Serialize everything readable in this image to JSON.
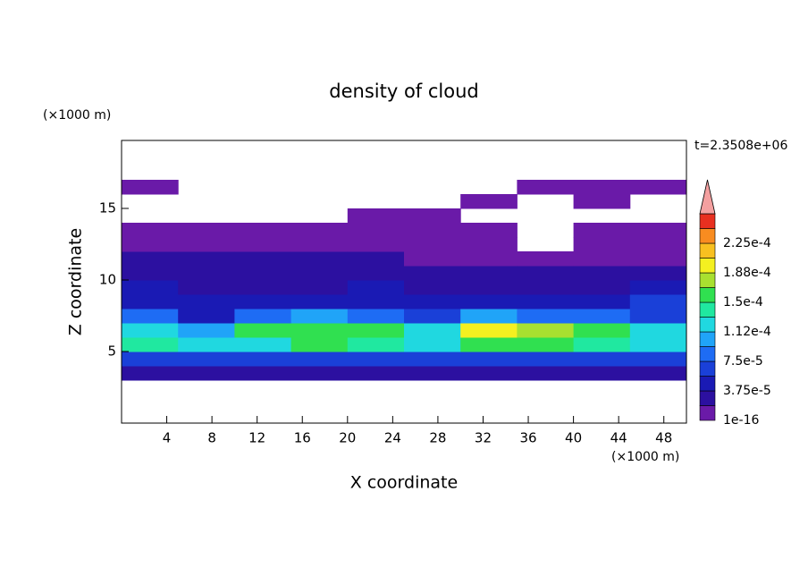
{
  "chart_data": {
    "type": "contour",
    "title": "density of cloud",
    "x_label": "X coordinate",
    "y_label": "Z coordinate",
    "x_unit": "(×1000 m)",
    "y_unit": "(×1000 m)",
    "annotation": "t=2.3508e+06",
    "xlim": [
      0,
      50
    ],
    "ylim": [
      0,
      19.75
    ],
    "xticks": [
      4,
      8,
      12,
      16,
      20,
      24,
      28,
      32,
      36,
      40,
      44,
      48
    ],
    "yticks": [
      5,
      10,
      15
    ],
    "x": [
      2.5,
      7.5,
      12.5,
      17.5,
      22.5,
      27.5,
      32.5,
      37.5,
      42.5,
      47.5
    ],
    "z": [
      3.5,
      4.5,
      5.5,
      6.5,
      7.5,
      8.5,
      9.5,
      10.5,
      11.5,
      12.5,
      13.5,
      14.5,
      15.5,
      16.5
    ],
    "values": [
      [
        3e-05,
        3e-05,
        3e-05,
        3e-05,
        3e-05,
        3e-05,
        3e-05,
        3e-05,
        3e-05,
        3e-05
      ],
      [
        7e-05,
        7e-05,
        7e-05,
        7e-05,
        7e-05,
        7e-05,
        7e-05,
        7e-05,
        7e-05,
        7e-05
      ],
      [
        0.00014,
        0.00012,
        0.00013,
        0.00015,
        0.00014,
        0.00013,
        0.00016,
        0.00015,
        0.00014,
        0.00013
      ],
      [
        0.00013,
        0.00011,
        0.00015,
        0.00016,
        0.00015,
        0.00013,
        0.0002,
        0.00017,
        0.00015,
        0.00012
      ],
      [
        8e-05,
        5e-05,
        9e-05,
        0.0001,
        9e-05,
        6e-05,
        0.0001,
        9e-05,
        8e-05,
        7e-05
      ],
      [
        5e-05,
        4e-05,
        5e-05,
        5e-05,
        5e-05,
        4e-05,
        4e-05,
        4e-05,
        5e-05,
        6e-05
      ],
      [
        4e-05,
        3e-05,
        3e-05,
        3e-05,
        4e-05,
        3e-05,
        3e-05,
        3e-05,
        3e-05,
        4e-05
      ],
      [
        3e-05,
        2e-05,
        2e-05,
        2e-05,
        2e-05,
        2e-05,
        2e-05,
        2e-05,
        2e-05,
        2e-05
      ],
      [
        2e-05,
        2e-05,
        2e-05,
        2e-05,
        2e-05,
        1e-05,
        1e-05,
        1e-05,
        1e-05,
        1e-05
      ],
      [
        1e-05,
        1e-05,
        1e-05,
        1e-05,
        1e-05,
        1e-05,
        1e-05,
        null,
        1e-05,
        1e-05
      ],
      [
        1e-05,
        1e-05,
        1e-05,
        1e-05,
        1e-05,
        1e-05,
        1e-05,
        null,
        1e-05,
        1e-05
      ],
      [
        null,
        null,
        null,
        null,
        1e-05,
        1e-05,
        null,
        null,
        null,
        null
      ],
      [
        null,
        null,
        null,
        null,
        null,
        null,
        1e-05,
        null,
        1e-05,
        null
      ],
      [
        1e-05,
        null,
        null,
        null,
        null,
        null,
        null,
        1e-05,
        1e-05,
        1e-05
      ]
    ],
    "levels": [
      1e-16,
      1.875e-05,
      3.75e-05,
      5.625e-05,
      7.5e-05,
      9.375e-05,
      0.0001125,
      0.00013125,
      0.00015,
      0.00016875,
      0.0001875,
      0.00020625,
      0.000225,
      0.00024375
    ],
    "level_labels": [
      "1e-16",
      null,
      "3.75e-5",
      null,
      "7.5e-5",
      null,
      "1.12e-4",
      null,
      "1.5e-4",
      null,
      "1.88e-4",
      null,
      "2.25e-4",
      null
    ],
    "colors": [
      "#6a1aa8",
      "#2c10a0",
      "#1a1ab4",
      "#1a40d8",
      "#1e6cf4",
      "#20a4f8",
      "#20d8e0",
      "#20e8a0",
      "#30e050",
      "#a8e030",
      "#f4f020",
      "#f8c020",
      "#f88c20",
      "#e83020"
    ],
    "extend_color": "#f4a0a0"
  }
}
